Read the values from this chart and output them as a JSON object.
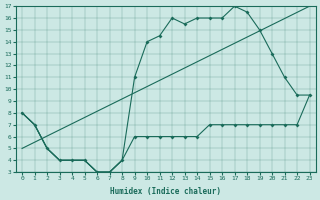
{
  "xlabel": "Humidex (Indice chaleur)",
  "ylabel": "",
  "bg_color": "#cce8e4",
  "line_color": "#1a6b5a",
  "xlim": [
    -0.5,
    23.5
  ],
  "ylim": [
    3,
    17
  ],
  "xticks": [
    0,
    1,
    2,
    3,
    4,
    5,
    6,
    7,
    8,
    9,
    10,
    11,
    12,
    13,
    14,
    15,
    16,
    17,
    18,
    19,
    20,
    21,
    22,
    23
  ],
  "yticks": [
    3,
    4,
    5,
    6,
    7,
    8,
    9,
    10,
    11,
    12,
    13,
    14,
    15,
    16,
    17
  ],
  "line1_x": [
    0,
    1,
    2,
    3,
    4,
    5,
    6,
    7,
    8,
    9,
    10,
    11,
    12,
    13,
    14,
    15,
    16,
    17,
    18,
    19,
    20,
    21,
    22,
    23
  ],
  "line1_y": [
    8,
    7,
    5,
    4,
    4,
    4,
    3,
    3,
    4,
    6,
    6,
    6,
    6,
    6,
    6,
    7,
    7,
    7,
    7,
    7,
    7,
    7,
    7,
    9.5
  ],
  "line2_x": [
    0,
    1,
    2,
    3,
    4,
    5,
    6,
    7,
    8,
    9,
    10,
    11,
    12,
    13,
    14,
    15,
    16,
    17,
    18,
    19,
    20,
    21,
    22,
    23
  ],
  "line2_y": [
    8,
    7,
    5,
    4,
    4,
    4,
    3,
    3,
    4,
    11,
    14,
    14.5,
    16,
    15.5,
    16,
    16,
    16,
    17,
    16.5,
    15,
    13,
    11,
    9.5,
    9.5
  ],
  "line3_x": [
    0,
    23
  ],
  "line3_y": [
    5,
    17
  ],
  "marker_x1": [
    0,
    1,
    2,
    3,
    4,
    5,
    6,
    7,
    8,
    9,
    10,
    11,
    12,
    13,
    14,
    15,
    16,
    17,
    18,
    19,
    20,
    21,
    22,
    23
  ],
  "marker_y1": [
    8,
    7,
    5,
    4,
    4,
    4,
    3,
    3,
    4,
    6,
    6,
    6,
    6,
    6,
    6,
    7,
    7,
    7,
    7,
    7,
    7,
    7,
    7,
    9.5
  ],
  "marker_x2": [
    9,
    10,
    11,
    12,
    13,
    14,
    15,
    16,
    17,
    18,
    19,
    20,
    21,
    22
  ],
  "marker_y2": [
    11,
    14,
    14.5,
    16,
    15.5,
    16,
    16,
    16,
    17,
    16.5,
    15,
    13,
    11,
    9.5
  ]
}
